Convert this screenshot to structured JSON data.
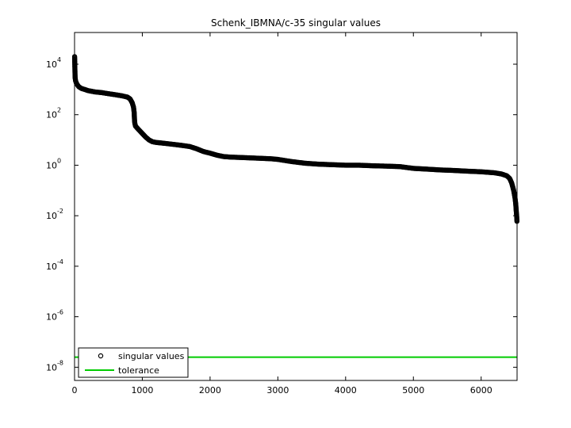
{
  "chart_data": {
    "type": "scatter",
    "title": "Schenk_IBMNA/c-35 singular values",
    "xlabel": "",
    "ylabel": "",
    "xlim": [
      0,
      6530
    ],
    "ylim": [
      3e-09,
      180000.0
    ],
    "yscale": "log",
    "grid": false,
    "legend_position": "bottom-left",
    "x_ticks": [
      0,
      1000,
      2000,
      3000,
      4000,
      5000,
      6000
    ],
    "x_tick_labels": [
      "0",
      "1000",
      "2000",
      "3000",
      "4000",
      "5000",
      "6000"
    ],
    "y_ticks": [
      1e-08,
      1e-06,
      0.0001,
      0.01,
      1,
      100,
      10000
    ],
    "y_tick_labels": [
      {
        "base": "10",
        "exp": "-8"
      },
      {
        "base": "10",
        "exp": "-6"
      },
      {
        "base": "10",
        "exp": "-4"
      },
      {
        "base": "10",
        "exp": "-2"
      },
      {
        "base": "10",
        "exp": "0"
      },
      {
        "base": "10",
        "exp": "2"
      },
      {
        "base": "10",
        "exp": "4"
      }
    ],
    "series": [
      {
        "name": "singular values",
        "marker": "circle",
        "color": "#000000",
        "points": [
          [
            1,
            20000
          ],
          [
            8,
            3000
          ],
          [
            15,
            2200
          ],
          [
            30,
            1700
          ],
          [
            60,
            1300
          ],
          [
            100,
            1100
          ],
          [
            150,
            1000
          ],
          [
            200,
            900
          ],
          [
            300,
            800
          ],
          [
            400,
            750
          ],
          [
            500,
            680
          ],
          [
            600,
            620
          ],
          [
            700,
            560
          ],
          [
            780,
            500
          ],
          [
            820,
            420
          ],
          [
            850,
            300
          ],
          [
            870,
            200
          ],
          [
            880,
            120
          ],
          [
            885,
            60
          ],
          [
            890,
            45
          ],
          [
            900,
            35
          ],
          [
            950,
            25
          ],
          [
            1000,
            18
          ],
          [
            1050,
            13
          ],
          [
            1100,
            10
          ],
          [
            1150,
            8.5
          ],
          [
            1200,
            8
          ],
          [
            1300,
            7.5
          ],
          [
            1400,
            7
          ],
          [
            1500,
            6.5
          ],
          [
            1600,
            6
          ],
          [
            1700,
            5.5
          ],
          [
            1800,
            4.5
          ],
          [
            1900,
            3.5
          ],
          [
            2000,
            3
          ],
          [
            2100,
            2.5
          ],
          [
            2200,
            2.2
          ],
          [
            2300,
            2.1
          ],
          [
            2500,
            2.0
          ],
          [
            2700,
            1.9
          ],
          [
            2900,
            1.8
          ],
          [
            3000,
            1.7
          ],
          [
            3200,
            1.4
          ],
          [
            3400,
            1.2
          ],
          [
            3600,
            1.1
          ],
          [
            3800,
            1.05
          ],
          [
            4000,
            1.0
          ],
          [
            4200,
            1.0
          ],
          [
            4400,
            0.95
          ],
          [
            4600,
            0.92
          ],
          [
            4800,
            0.88
          ],
          [
            5000,
            0.75
          ],
          [
            5200,
            0.7
          ],
          [
            5400,
            0.65
          ],
          [
            5600,
            0.62
          ],
          [
            5800,
            0.58
          ],
          [
            6000,
            0.55
          ],
          [
            6200,
            0.5
          ],
          [
            6300,
            0.45
          ],
          [
            6380,
            0.38
          ],
          [
            6420,
            0.3
          ],
          [
            6450,
            0.2
          ],
          [
            6480,
            0.1
          ],
          [
            6500,
            0.05
          ],
          [
            6510,
            0.03
          ],
          [
            6518,
            0.015
          ],
          [
            6524,
            0.01
          ],
          [
            6528,
            0.006
          ]
        ]
      },
      {
        "name": "tolerance",
        "line": true,
        "color": "#00cc00",
        "x": [
          0,
          6530
        ],
        "y": [
          2.5e-08,
          2.5e-08
        ]
      }
    ]
  }
}
